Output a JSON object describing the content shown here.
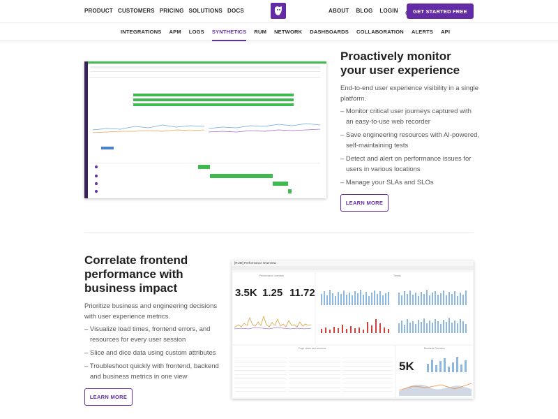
{
  "nav": {
    "left": [
      "PRODUCT",
      "CUSTOMERS",
      "PRICING",
      "SOLUTIONS",
      "DOCS"
    ],
    "right": [
      "ABOUT",
      "BLOG",
      "LOGIN"
    ],
    "cta": "GET STARTED FREE",
    "icons": {
      "logo": "dog-logo-icon",
      "search": "search-icon"
    },
    "colors": {
      "brand": "#632ca6"
    }
  },
  "subnav": {
    "items": [
      "INTEGRATIONS",
      "APM",
      "LOGS",
      "SYNTHETICS",
      "RUM",
      "NETWORK",
      "DASHBOARDS",
      "COLLABORATION",
      "ALERTS",
      "API"
    ],
    "active_index": 3
  },
  "section1": {
    "title": "Proactively monitor your user experience",
    "lead": "End-to-end user experience visibility in a single platform.",
    "bullets": [
      "– Monitor critical user journeys captured with an easy-to-use web recorder",
      "– Save engineering resources with AI-powered, self-maintaining tests",
      "– Detect and alert on performance issues for users in various locations",
      "– Manage your SLAs and SLOs"
    ],
    "button": "LEARN MORE"
  },
  "section2": {
    "title": "Correlate frontend performance with business impact",
    "lead": "Prioritize business and engineering decisions with user experience metrics.",
    "bullets": [
      "– Visualize load times, frontend errors, and resources for every user session",
      "– Slice and dice data using custom attributes",
      "– Troubleshoot quickly with frontend, backend and business metrics in one view"
    ],
    "button": "LEARN MORE"
  },
  "dashboard": {
    "title": "[RUM] Performance Overview",
    "panel_overview": "Performance overview",
    "panel_trends": "Trends",
    "panel_sessions": "Page views and sessions",
    "panel_business": "Business Overview",
    "kpis": [
      "3.5K",
      "1.25",
      "11.72",
      "5K"
    ]
  }
}
